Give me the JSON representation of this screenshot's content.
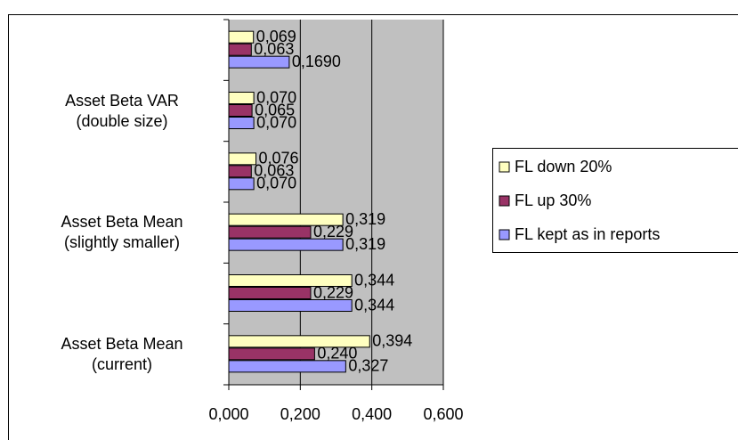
{
  "chart_data": {
    "type": "hbar",
    "categories": [
      "Asset Beta Mean\n(current)",
      null,
      "Asset Beta Mean\n(slightly smaller)",
      null,
      "Asset Beta VAR\n(double size)",
      null
    ],
    "series": [
      {
        "name": "FL down 20%",
        "color": "#ffffc0",
        "values": [
          0.394,
          0.344,
          0.319,
          0.076,
          0.07,
          0.069
        ],
        "value_labels": [
          "0,394",
          "0,344",
          "0,319",
          "0,076",
          "0,070",
          "0,069"
        ]
      },
      {
        "name": "FL up 30%",
        "color": "#993366",
        "values": [
          0.24,
          0.229,
          0.229,
          0.063,
          0.065,
          0.063
        ],
        "value_labels": [
          "0,240",
          "0,229",
          "0,229",
          "0,063",
          "0,065",
          "0,063"
        ]
      },
      {
        "name": "FL kept as in reports",
        "color": "#9999ff",
        "values": [
          0.327,
          0.344,
          0.319,
          0.07,
          0.07,
          0.169
        ],
        "value_labels": [
          "0,327",
          "0,344",
          "0,319",
          "0,070",
          "0,070",
          "0,1690"
        ]
      }
    ],
    "xlim": [
      0,
      0.6
    ],
    "xticks": [
      {
        "value": 0,
        "label": "0,000"
      },
      {
        "value": 0.2,
        "label": "0,200"
      },
      {
        "value": 0.4,
        "label": "0,400"
      },
      {
        "value": 0.6,
        "label": "0,600"
      }
    ],
    "grid": true,
    "plot_background": "#c0c0c0",
    "legend": "right"
  }
}
